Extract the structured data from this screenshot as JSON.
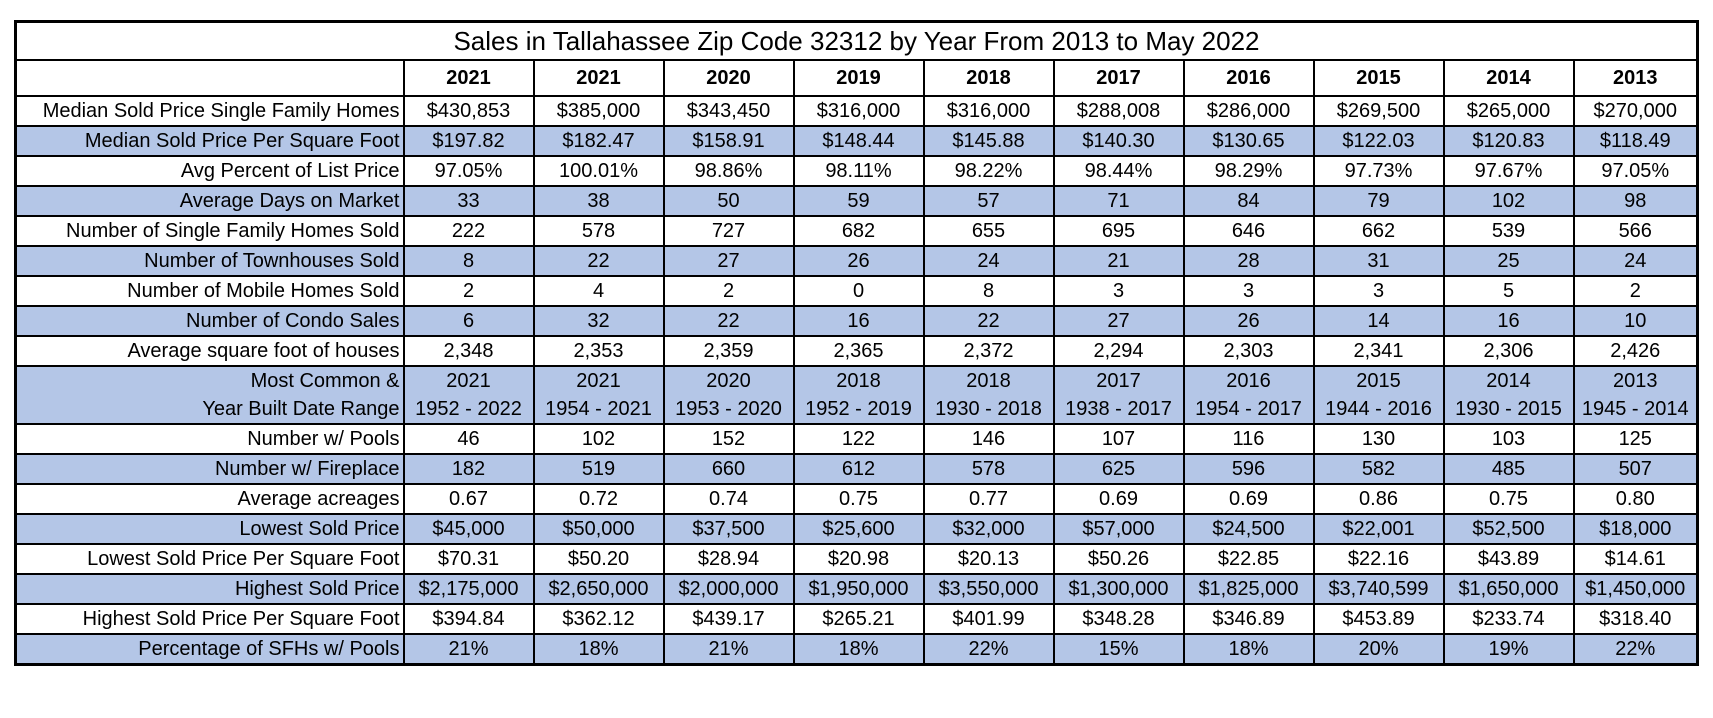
{
  "title": "Sales in Tallahassee Zip Code 32312 by Year From 2013 to May 2022",
  "years": [
    "2021",
    "2021",
    "2020",
    "2019",
    "2018",
    "2017",
    "2016",
    "2015",
    "2014",
    "2013"
  ],
  "rows": [
    {
      "label": "Median Sold Price Single Family Homes",
      "values": [
        "$430,853",
        "$385,000",
        "$343,450",
        "$316,000",
        "$316,000",
        "$288,008",
        "$286,000",
        "$269,500",
        "$265,000",
        "$270,000"
      ]
    },
    {
      "label": "Median Sold Price Per Square Foot",
      "values": [
        "$197.82",
        "$182.47",
        "$158.91",
        "$148.44",
        "$145.88",
        "$140.30",
        "$130.65",
        "$122.03",
        "$120.83",
        "$118.49"
      ]
    },
    {
      "label": "Avg Percent of List Price",
      "values": [
        "97.05%",
        "100.01%",
        "98.86%",
        "98.11%",
        "98.22%",
        "98.44%",
        "98.29%",
        "97.73%",
        "97.67%",
        "97.05%"
      ]
    },
    {
      "label": "Average Days on Market",
      "values": [
        "33",
        "38",
        "50",
        "59",
        "57",
        "71",
        "84",
        "79",
        "102",
        "98"
      ]
    },
    {
      "label": "Number of Single Family Homes Sold",
      "values": [
        "222",
        "578",
        "727",
        "682",
        "655",
        "695",
        "646",
        "662",
        "539",
        "566"
      ]
    },
    {
      "label": "Number of Townhouses Sold",
      "values": [
        "8",
        "22",
        "27",
        "26",
        "24",
        "21",
        "28",
        "31",
        "25",
        "24"
      ]
    },
    {
      "label": "Number of Mobile Homes Sold",
      "values": [
        "2",
        "4",
        "2",
        "0",
        "8",
        "3",
        "3",
        "3",
        "5",
        "2"
      ]
    },
    {
      "label": "Number of Condo Sales",
      "values": [
        "6",
        "32",
        "22",
        "16",
        "22",
        "27",
        "26",
        "14",
        "16",
        "10"
      ]
    },
    {
      "label": "Average square foot of houses",
      "values": [
        "2,348",
        "2,353",
        "2,359",
        "2,365",
        "2,372",
        "2,294",
        "2,303",
        "2,341",
        "2,306",
        "2,426"
      ]
    },
    {
      "label_lines": [
        "Most Common &",
        "Year Built Date Range"
      ],
      "values_lines": [
        [
          "2021",
          "1952 - 2022"
        ],
        [
          "2021",
          "1954 - 2021"
        ],
        [
          "2020",
          "1953 - 2020"
        ],
        [
          "2018",
          "1952 - 2019"
        ],
        [
          "2018",
          "1930 - 2018"
        ],
        [
          "2017",
          "1938 - 2017"
        ],
        [
          "2016",
          "1954 - 2017"
        ],
        [
          "2015",
          "1944 - 2016"
        ],
        [
          "2014",
          "1930 - 2015"
        ],
        [
          "2013",
          "1945 - 2014"
        ]
      ]
    },
    {
      "label": "Number w/ Pools",
      "values": [
        "46",
        "102",
        "152",
        "122",
        "146",
        "107",
        "116",
        "130",
        "103",
        "125"
      ]
    },
    {
      "label": "Number w/ Fireplace",
      "values": [
        "182",
        "519",
        "660",
        "612",
        "578",
        "625",
        "596",
        "582",
        "485",
        "507"
      ]
    },
    {
      "label": "Average acreages",
      "values": [
        "0.67",
        "0.72",
        "0.74",
        "0.75",
        "0.77",
        "0.69",
        "0.69",
        "0.86",
        "0.75",
        "0.80"
      ]
    },
    {
      "label": "Lowest Sold Price",
      "values": [
        "$45,000",
        "$50,000",
        "$37,500",
        "$25,600",
        "$32,000",
        "$57,000",
        "$24,500",
        "$22,001",
        "$52,500",
        "$18,000"
      ]
    },
    {
      "label": "Lowest Sold Price Per Square Foot",
      "values": [
        "$70.31",
        "$50.20",
        "$28.94",
        "$20.98",
        "$20.13",
        "$50.26",
        "$22.85",
        "$22.16",
        "$43.89",
        "$14.61"
      ]
    },
    {
      "label": "Highest Sold Price",
      "values": [
        "$2,175,000",
        "$2,650,000",
        "$2,000,000",
        "$1,950,000",
        "$3,550,000",
        "$1,300,000",
        "$1,825,000",
        "$3,740,599",
        "$1,650,000",
        "$1,450,000"
      ]
    },
    {
      "label": "Highest Sold Price Per Square Foot",
      "values": [
        "$394.84",
        "$362.12",
        "$439.17",
        "$265.21",
        "$401.99",
        "$348.28",
        "$346.89",
        "$453.89",
        "$233.74",
        "$318.40"
      ]
    },
    {
      "label": "Percentage of SFHs w/ Pools",
      "values": [
        "21%",
        "18%",
        "21%",
        "18%",
        "22%",
        "15%",
        "18%",
        "20%",
        "19%",
        "22%"
      ]
    }
  ],
  "colors": {
    "shaded_row": "#b4c6e7",
    "border": "#000000",
    "background": "#ffffff"
  }
}
